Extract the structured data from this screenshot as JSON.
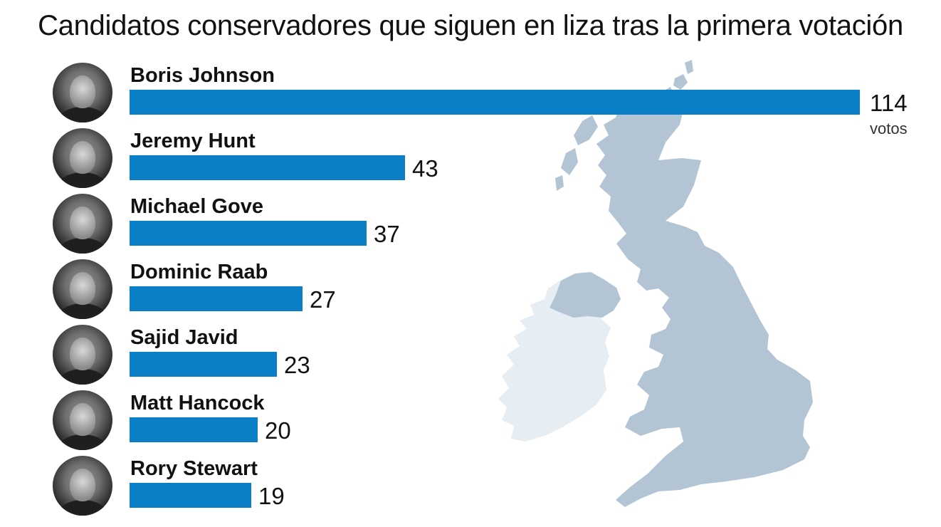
{
  "chart_data": {
    "type": "bar",
    "orientation": "horizontal",
    "title": "Candidatos conservadores que siguen en liza tras la primera votación",
    "categories": [
      "Boris Johnson",
      "Jeremy Hunt",
      "Michael Gove",
      "Dominic Raab",
      "Sajid Javid",
      "Matt Hancock",
      "Rory Stewart"
    ],
    "values": [
      114,
      43,
      37,
      27,
      23,
      20,
      19
    ],
    "value_labels": [
      "114",
      "43",
      "37",
      "27",
      "23",
      "20",
      "19"
    ],
    "unit_label": "votos",
    "xlim": [
      0,
      114
    ],
    "grid": false,
    "legend": "none"
  },
  "colors": {
    "bar": "#0a7ec6",
    "map_uk": "#b3c4d5",
    "map_ireland": "#e6edf3"
  },
  "map": {
    "description_icon": "british-isles-map"
  }
}
